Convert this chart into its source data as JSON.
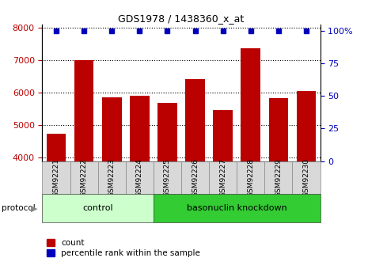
{
  "title": "GDS1978 / 1438360_x_at",
  "samples": [
    "GSM92221",
    "GSM92222",
    "GSM92223",
    "GSM92224",
    "GSM92225",
    "GSM92226",
    "GSM92227",
    "GSM92228",
    "GSM92229",
    "GSM92230"
  ],
  "counts": [
    4750,
    7000,
    5850,
    5900,
    5700,
    6430,
    5480,
    7380,
    5830,
    6050
  ],
  "percentile_ranks": [
    100,
    100,
    100,
    100,
    100,
    100,
    100,
    100,
    100,
    100
  ],
  "ylim_left": [
    3900,
    8100
  ],
  "ylim_right": [
    0,
    105
  ],
  "yticks_left": [
    4000,
    5000,
    6000,
    7000,
    8000
  ],
  "yticks_right": [
    0,
    25,
    50,
    75,
    100
  ],
  "bar_color": "#bb0000",
  "dot_color": "#0000bb",
  "n_control": 4,
  "n_knockdown": 6,
  "control_label": "control",
  "knockdown_label": "basonuclin knockdown",
  "control_color": "#ccffcc",
  "knockdown_color": "#33cc33",
  "protocol_label": "protocol",
  "legend_count_label": "count",
  "legend_percentile_label": "percentile rank within the sample",
  "bar_width": 0.7,
  "xlim": [
    -0.5,
    9.5
  ],
  "bg_color": "#ffffff",
  "gray_box_color": "#d8d8d8"
}
